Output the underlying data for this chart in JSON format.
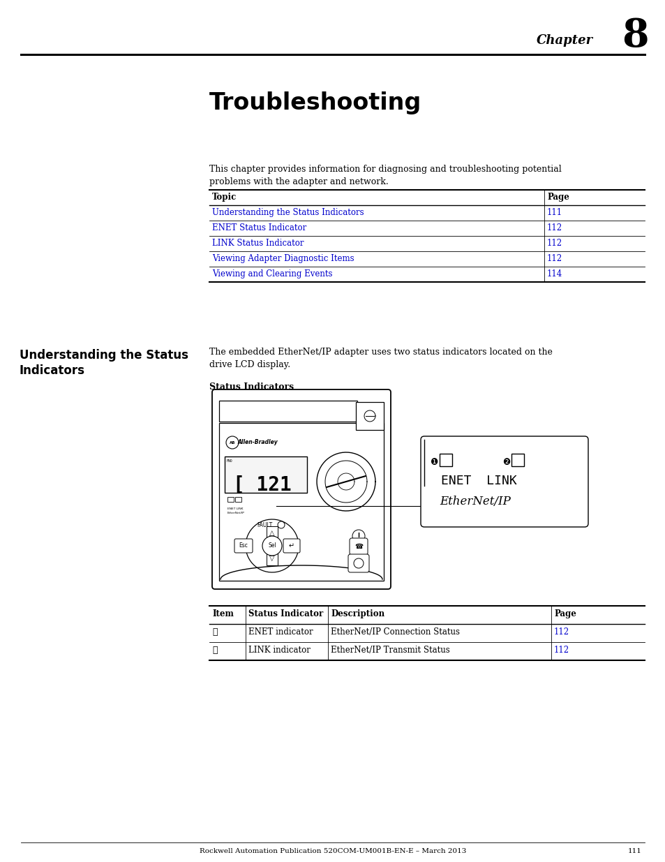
{
  "page_bg": "#ffffff",
  "chapter_text": "Chapter",
  "chapter_num": "8",
  "title": "Troubleshooting",
  "intro_text": "This chapter provides information for diagnosing and troubleshooting potential\nproblems with the adapter and network.",
  "table1_headers": [
    "Topic",
    "Page"
  ],
  "table1_rows": [
    [
      "Understanding the Status Indicators",
      "111"
    ],
    [
      "ENET Status Indicator",
      "112"
    ],
    [
      "LINK Status Indicator",
      "112"
    ],
    [
      "Viewing Adapter Diagnostic Items",
      "112"
    ],
    [
      "Viewing and Clearing Events",
      "114"
    ]
  ],
  "section_title": "Understanding the Status\nIndicators",
  "section_body": "The embedded EtherNet/IP adapter uses two status indicators located on the\ndrive LCD display.",
  "status_indicators_label": "Status Indicators",
  "callout_enet_link": "ENET  LINK",
  "callout_ethernet": "EtherNet/IP",
  "table2_headers": [
    "Item",
    "Status Indicator",
    "Description",
    "Page"
  ],
  "table2_rows": [
    [
      "①",
      "ENET indicator",
      "EtherNet/IP Connection Status",
      "112"
    ],
    [
      "②",
      "LINK indicator",
      "EtherNet/IP Transmit Status",
      "112"
    ]
  ],
  "footer_text": "Rockwell Automation Publication 520COM-UM001B-EN-E – March 2013",
  "footer_page": "111",
  "link_color": "#0000cc",
  "text_color": "#000000"
}
